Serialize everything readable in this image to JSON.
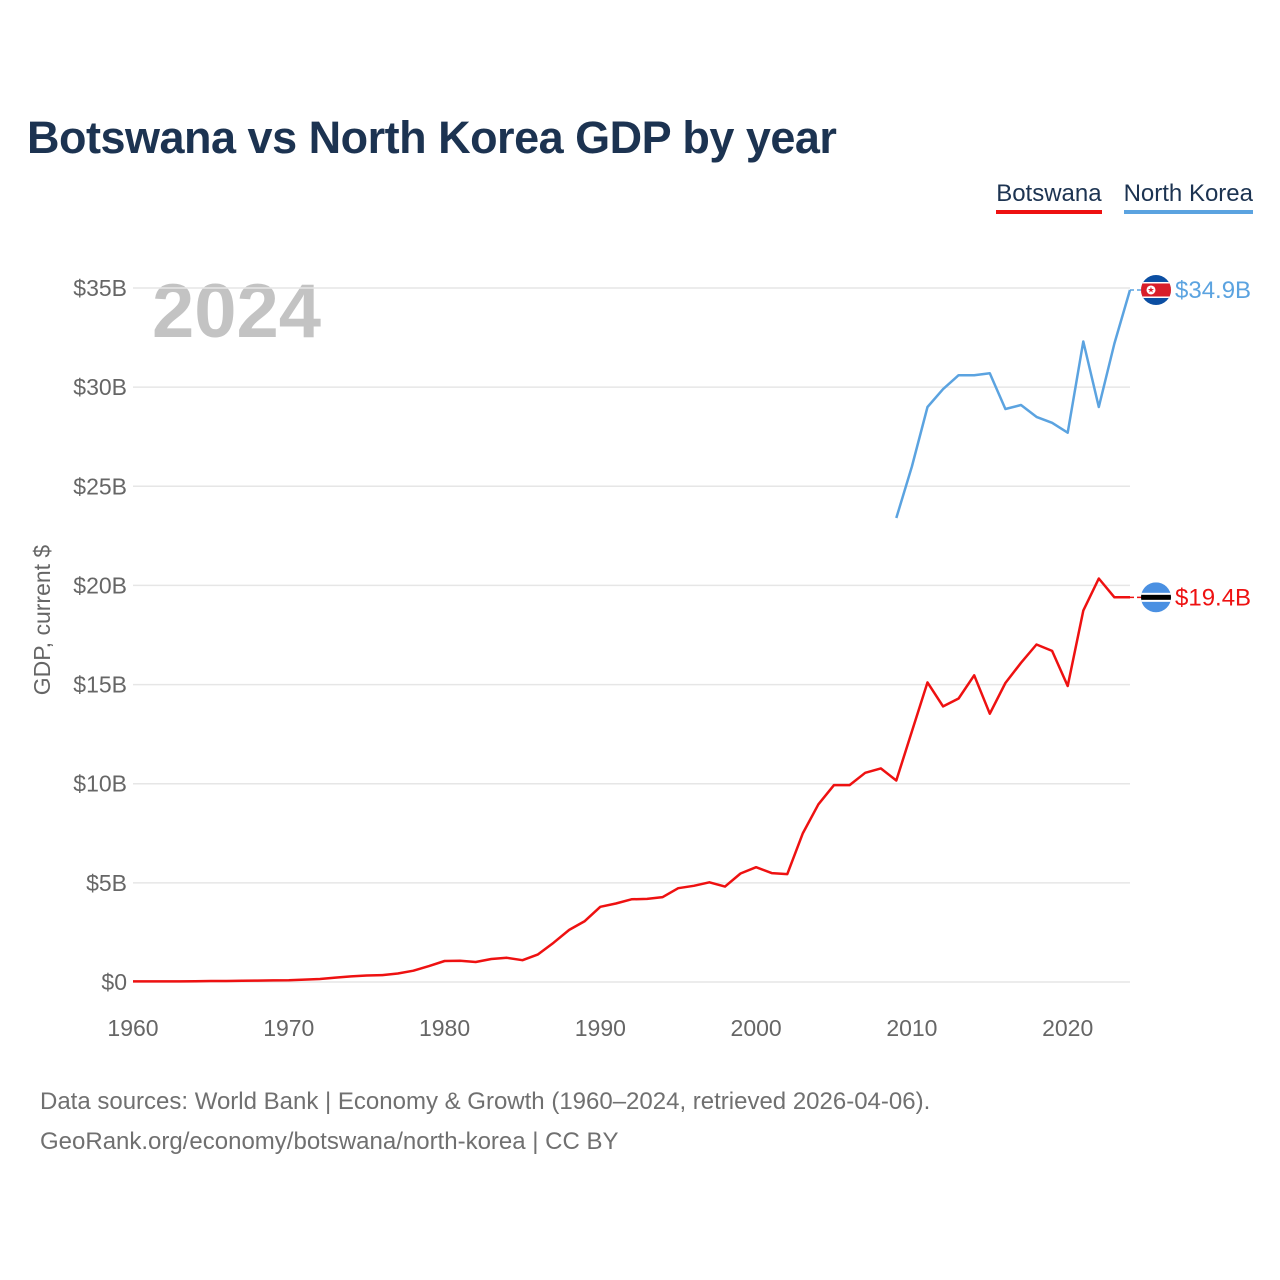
{
  "header": {
    "title": "Botswana vs North Korea GDP by year"
  },
  "legend": {
    "botswana": "Botswana",
    "north_korea": "North Korea"
  },
  "year_overlay": "2024",
  "footer": {
    "line1": "Data sources: World Bank | Economy & Growth (1960–2024, retrieved 2026-04-06).",
    "line2": "GeoRank.org/economy/botswana/north-korea | CC BY"
  },
  "colors": {
    "botswana": "#ee1111",
    "north_korea": "#5ba3e0",
    "grid": "#e6e6e6"
  },
  "chart_data": {
    "type": "line",
    "title": "Botswana vs North Korea GDP by year",
    "xlabel": "",
    "ylabel": "GDP, current $",
    "xlim": [
      1960,
      2024
    ],
    "ylim": [
      0,
      35
    ],
    "x_ticks": [
      1960,
      1970,
      1980,
      1990,
      2000,
      2010,
      2020
    ],
    "y_ticks": [
      0,
      5,
      10,
      15,
      20,
      25,
      30,
      35
    ],
    "y_tick_labels": [
      "$0",
      "$5B",
      "$10B",
      "$15B",
      "$20B",
      "$25B",
      "$30B",
      "$35B"
    ],
    "units": "billions USD",
    "series": [
      {
        "name": "Botswana",
        "end_label": "$19.4B",
        "x": [
          1960,
          1961,
          1962,
          1963,
          1964,
          1965,
          1966,
          1967,
          1968,
          1969,
          1970,
          1971,
          1972,
          1973,
          1974,
          1975,
          1976,
          1977,
          1978,
          1979,
          1980,
          1981,
          1982,
          1983,
          1984,
          1985,
          1986,
          1987,
          1988,
          1989,
          1990,
          1991,
          1992,
          1993,
          1994,
          1995,
          1996,
          1997,
          1998,
          1999,
          2000,
          2001,
          2002,
          2003,
          2004,
          2005,
          2006,
          2007,
          2008,
          2009,
          2010,
          2011,
          2012,
          2013,
          2014,
          2015,
          2016,
          2017,
          2018,
          2019,
          2020,
          2021,
          2022,
          2023,
          2024
        ],
        "values": [
          0.03,
          0.03,
          0.03,
          0.03,
          0.04,
          0.05,
          0.05,
          0.06,
          0.07,
          0.08,
          0.09,
          0.12,
          0.15,
          0.22,
          0.28,
          0.33,
          0.35,
          0.43,
          0.57,
          0.8,
          1.06,
          1.07,
          1.01,
          1.16,
          1.22,
          1.1,
          1.39,
          1.98,
          2.63,
          3.07,
          3.79,
          3.96,
          4.17,
          4.19,
          4.28,
          4.73,
          4.85,
          5.03,
          4.81,
          5.47,
          5.79,
          5.49,
          5.44,
          7.51,
          8.96,
          9.93,
          9.93,
          10.55,
          10.77,
          10.16,
          12.64,
          15.11,
          13.9,
          14.3,
          15.47,
          13.53,
          15.08,
          16.1,
          17.02,
          16.7,
          14.93,
          18.73,
          20.35,
          19.4,
          19.4
        ]
      },
      {
        "name": "North Korea",
        "end_label": "$34.9B",
        "x": [
          2009,
          2010,
          2011,
          2012,
          2013,
          2014,
          2015,
          2016,
          2017,
          2018,
          2019,
          2020,
          2021,
          2022,
          2023,
          2024
        ],
        "values": [
          23.4,
          26.0,
          29.0,
          29.9,
          30.6,
          30.6,
          30.7,
          28.9,
          29.1,
          28.5,
          28.2,
          27.7,
          32.3,
          29.0,
          32.2,
          34.9
        ]
      }
    ]
  }
}
